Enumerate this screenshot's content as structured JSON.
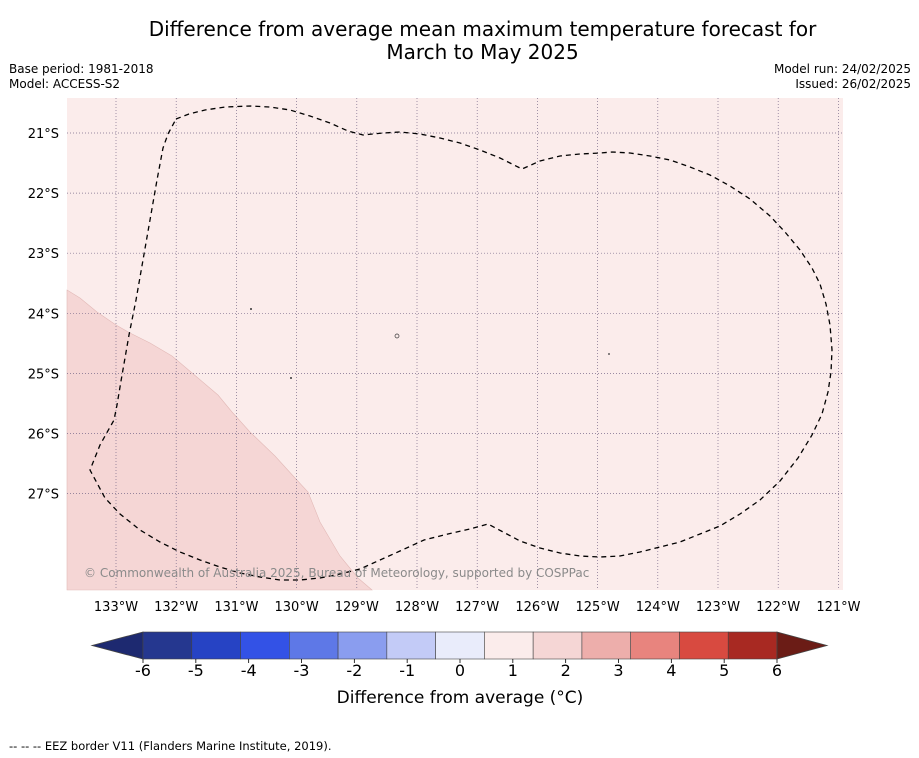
{
  "title": {
    "line1": "Difference from average mean maximum temperature forecast for",
    "line2": "March to May 2025"
  },
  "meta": {
    "base_period": "Base period: 1981-2018",
    "model": "Model: ACCESS-S2",
    "model_run": "Model run: 24/02/2025",
    "issued": "Issued: 26/02/2025"
  },
  "map": {
    "lat_labels": [
      "21°S",
      "22°S",
      "23°S",
      "24°S",
      "25°S",
      "26°S",
      "27°S"
    ],
    "lon_labels": [
      "133°W",
      "132°W",
      "131°W",
      "130°W",
      "129°W",
      "128°W",
      "127°W",
      "126°W",
      "125°W",
      "124°W",
      "123°W",
      "122°W",
      "121°W"
    ],
    "background_color": "#fbeceb",
    "warm_region_color": "#f5d6d5",
    "copyright": "© Commonwealth of Australia 2025, Bureau of Meteorology, supported by COSPPac"
  },
  "colorbar": {
    "ticks": [
      "-6",
      "-5",
      "-4",
      "-3",
      "-2",
      "-1",
      "0",
      "1",
      "2",
      "3",
      "4",
      "5",
      "6"
    ],
    "colors": [
      "#25378f",
      "#2643c4",
      "#3352e6",
      "#5e78e7",
      "#8a9def",
      "#c3cbf7",
      "#e9ecfb",
      "#fbeceb",
      "#f5d6d5",
      "#edaeab",
      "#e8847e",
      "#d84a40",
      "#a82922"
    ],
    "extend_low_color": "#1d2970",
    "extend_high_color": "#6b1c16",
    "label": "Difference from average (°C)"
  },
  "footnote": "--  --  -- EEZ border V11 (Flanders Marine Institute, 2019)."
}
